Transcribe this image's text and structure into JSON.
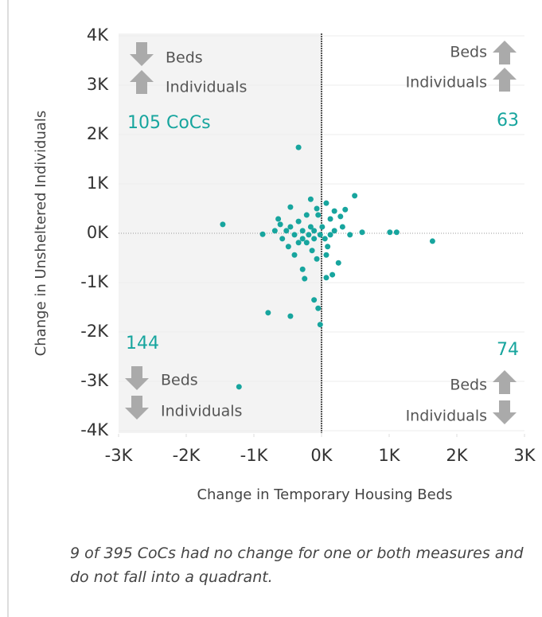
{
  "chart_data": {
    "type": "scatter",
    "x_label": "Change in Temporary Housing Beds",
    "y_label": "Change in Unsheltered Individuals",
    "xlim": [
      -3000,
      3000
    ],
    "ylim": [
      -4000,
      4000
    ],
    "xticks": [
      {
        "value": -3000,
        "label": "-3K"
      },
      {
        "value": -2000,
        "label": "-2K"
      },
      {
        "value": -1000,
        "label": "-1K"
      },
      {
        "value": 0,
        "label": "0K"
      },
      {
        "value": 1000,
        "label": "1K"
      },
      {
        "value": 2000,
        "label": "2K"
      },
      {
        "value": 3000,
        "label": "3K"
      }
    ],
    "yticks": [
      {
        "value": 4000,
        "label": "4K"
      },
      {
        "value": 3000,
        "label": "3K"
      },
      {
        "value": 2000,
        "label": "2K"
      },
      {
        "value": 1000,
        "label": "1K"
      },
      {
        "value": 0,
        "label": "0K"
      },
      {
        "value": -1000,
        "label": "-1K"
      },
      {
        "value": -2000,
        "label": "-2K"
      },
      {
        "value": -3000,
        "label": "-3K"
      },
      {
        "value": -4000,
        "label": "-4K"
      }
    ],
    "color": "#17a59e",
    "x": [
      -340,
      -1460,
      -870,
      -790,
      -460,
      -1220,
      -110,
      -50,
      -20,
      70,
      160,
      250,
      -250,
      -280,
      1010,
      1110,
      1640,
      490,
      600,
      350,
      -160,
      70,
      -460,
      -640,
      -690,
      -580,
      -490,
      -400,
      -280,
      -160,
      -110,
      -50,
      130,
      190,
      310,
      420,
      -220,
      -140,
      50,
      90,
      190,
      -70,
      -340,
      -520,
      -400,
      -110,
      10,
      -20,
      -340,
      70,
      280,
      -220,
      -460,
      -70,
      -190,
      130,
      -280,
      -610
    ],
    "y": [
      1740,
      180,
      -20,
      -1610,
      -1680,
      -3110,
      -1350,
      -1520,
      -1850,
      -900,
      -840,
      -600,
      -920,
      -730,
      20,
      20,
      -160,
      760,
      20,
      480,
      690,
      610,
      530,
      290,
      50,
      -110,
      -270,
      -440,
      50,
      130,
      -110,
      370,
      290,
      50,
      130,
      -30,
      -190,
      -350,
      -110,
      -270,
      450,
      500,
      240,
      50,
      -30,
      50,
      130,
      -30,
      -190,
      -440,
      340,
      370,
      130,
      -520,
      -30,
      -30,
      -110,
      180
    ],
    "quadrants": [
      {
        "count": "105 CoCs",
        "beds": "Beds",
        "individuals": "Individuals"
      },
      {
        "count": "63",
        "beds": "Beds",
        "individuals": "Individuals"
      },
      {
        "count": "144",
        "beds": "Beds",
        "individuals": "Individuals"
      },
      {
        "count": "74",
        "beds": "Beds",
        "individuals": "Individuals"
      }
    ],
    "footnote": "9 of 395 CoCs had no change for one or both measures and do not fall into a quadrant."
  }
}
